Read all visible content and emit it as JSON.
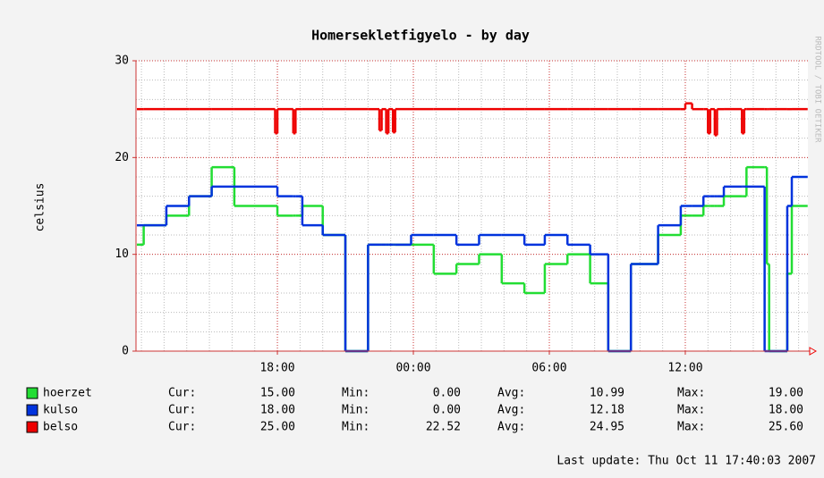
{
  "chart_data": {
    "type": "step",
    "title": "Homersekletfigyelo - by day",
    "y_label": "celsius",
    "watermark": "RRDTOOL / TOBI OETIKER",
    "last_update": "Last update: Thu Oct 11 17:40:03 2007",
    "xlim": [
      11.76,
      41.41
    ],
    "xticks": [
      {
        "value": 18,
        "label": "18:00"
      },
      {
        "value": 24,
        "label": "00:00"
      },
      {
        "value": 30,
        "label": "06:00"
      },
      {
        "value": 36,
        "label": "12:00"
      }
    ],
    "ylim": [
      0,
      30
    ],
    "yticks": [
      0,
      10,
      20,
      30
    ],
    "grid": true,
    "x": [
      11.8,
      12.1,
      13.1,
      14.1,
      15.1,
      16.1,
      17.9,
      18.0,
      18.7,
      18.8,
      19.1,
      20.0,
      21.0,
      22.0,
      22.5,
      22.6,
      22.8,
      22.9,
      23.1,
      23.2,
      23.9,
      24.9,
      25.9,
      26.9,
      27.9,
      28.9,
      29.8,
      30.8,
      31.8,
      32.6,
      33.6,
      34.8,
      35.8,
      36.0,
      36.3,
      36.8,
      37.0,
      37.1,
      37.3,
      37.4,
      37.7,
      38.5,
      38.6,
      38.7,
      39.5,
      39.6,
      39.7,
      40.5,
      40.7,
      41.4
    ],
    "stat_labels": [
      "Cur:",
      "Min:",
      "Avg:",
      "Max:"
    ],
    "series": [
      {
        "name": "hoerzet",
        "color": "#22dd33",
        "values": [
          11,
          13,
          14,
          16,
          19,
          15,
          15,
          14,
          14,
          14,
          15,
          12,
          0,
          11,
          11,
          11,
          11,
          11,
          11,
          11,
          11,
          8,
          9,
          10,
          7,
          6,
          9,
          10,
          7,
          0,
          9,
          12,
          14,
          14,
          14,
          15,
          15,
          15,
          15,
          15,
          16,
          16,
          16,
          19,
          19,
          9,
          0,
          8,
          15,
          15
        ],
        "stats": [
          "15.00",
          "0.00",
          "10.99",
          "19.00"
        ]
      },
      {
        "name": "kulso",
        "color": "#0033dd",
        "values": [
          13,
          13,
          15,
          16,
          17,
          17,
          17,
          16,
          16,
          16,
          13,
          12,
          0,
          11,
          11,
          11,
          11,
          11,
          11,
          11,
          12,
          12,
          11,
          12,
          12,
          11,
          12,
          11,
          10,
          0,
          9,
          13,
          15,
          15,
          15,
          16,
          16,
          16,
          16,
          16,
          17,
          17,
          17,
          17,
          0,
          0,
          0,
          15,
          18,
          18
        ],
        "stats": [
          "18.00",
          "0.00",
          "12.18",
          "18.00"
        ]
      },
      {
        "name": "belso",
        "color": "#ee0000",
        "values": [
          25,
          25,
          25,
          25,
          25,
          25,
          22.5,
          25,
          22.5,
          25,
          25,
          25,
          25,
          25,
          22.8,
          25,
          22.5,
          25,
          22.6,
          25,
          25,
          25,
          25,
          25,
          25,
          25,
          25,
          25,
          25,
          25,
          25,
          25,
          25,
          25.6,
          25,
          25,
          22.5,
          25,
          22.3,
          25,
          25,
          22.5,
          25,
          25,
          25,
          25,
          25,
          25,
          25,
          25
        ],
        "stats": [
          "25.00",
          "22.52",
          "24.95",
          "25.60"
        ]
      }
    ]
  }
}
